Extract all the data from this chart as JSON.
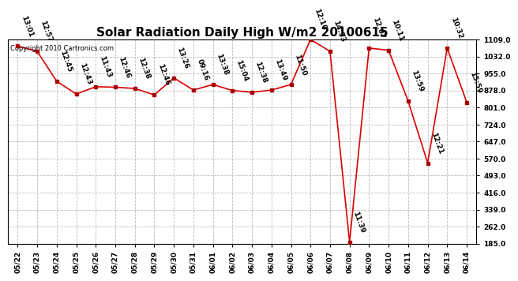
{
  "title": "Solar Radiation Daily High W/m2 20100615",
  "copyright": "Copyright 2010 Cartronics.com",
  "dates": [
    "05/22",
    "05/23",
    "05/24",
    "05/25",
    "05/26",
    "05/27",
    "05/28",
    "05/29",
    "05/30",
    "05/31",
    "06/01",
    "06/02",
    "06/03",
    "06/04",
    "06/05",
    "06/06",
    "06/07",
    "06/08",
    "06/09",
    "06/10",
    "06/11",
    "06/12",
    "06/13",
    "06/14"
  ],
  "values": [
    1079,
    1055,
    920,
    862,
    895,
    893,
    887,
    858,
    935,
    880,
    905,
    878,
    870,
    880,
    905,
    1109,
    1055,
    192,
    1070,
    1060,
    830,
    550,
    1070,
    825
  ],
  "time_labels": [
    "13:01",
    "12:57",
    "12:45",
    "12:43",
    "11:43",
    "12:46",
    "12:38",
    "12:46",
    "13:26",
    "09:16",
    "13:38",
    "15:04",
    "12:38",
    "13:49",
    "11:50",
    "12:10",
    "14:33",
    "11:39",
    "12:07",
    "10:11",
    "13:59",
    "12:21",
    "10:32",
    "15:59"
  ],
  "ylim": [
    185.0,
    1109.0
  ],
  "yticks": [
    185.0,
    262.0,
    339.0,
    416.0,
    493.0,
    570.0,
    647.0,
    724.0,
    801.0,
    878.0,
    955.0,
    1032.0,
    1109.0
  ],
  "line_color": "#dd0000",
  "marker_color": "#aa0000",
  "grid_color": "#bbbbbb",
  "bg_color": "#ffffff",
  "title_fontsize": 11,
  "label_fontsize": 6.5,
  "tick_fontsize": 6.5
}
